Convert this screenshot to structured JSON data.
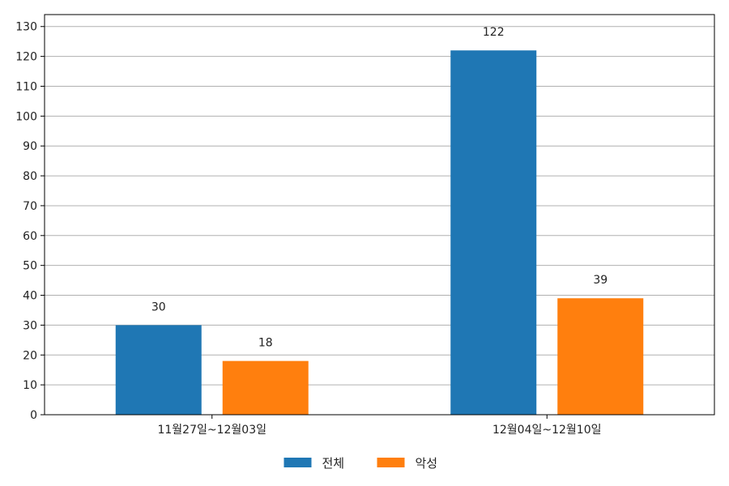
{
  "chart_data": {
    "type": "bar",
    "categories": [
      "11월27일~12월03일",
      "12월04일~12월10일"
    ],
    "series": [
      {
        "name": "전체",
        "values": [
          30,
          122
        ],
        "color": "#1f77b4"
      },
      {
        "name": "악성",
        "values": [
          18,
          39
        ],
        "color": "#ff7f0e"
      }
    ],
    "ylim": [
      0,
      134
    ],
    "yticks": [
      0,
      10,
      20,
      30,
      40,
      50,
      60,
      70,
      80,
      90,
      100,
      110,
      120,
      130
    ],
    "grid": true,
    "legend_position": "bottom-center"
  }
}
